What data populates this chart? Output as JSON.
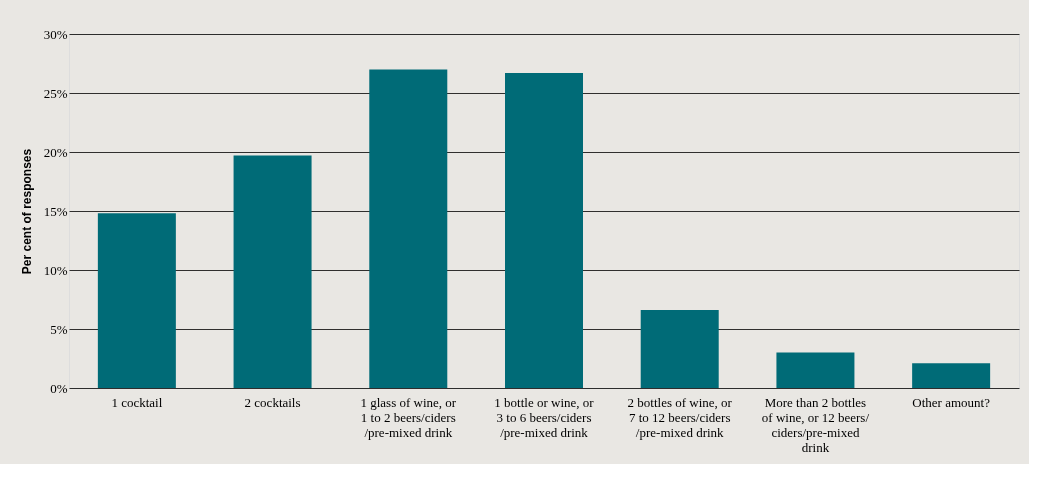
{
  "chart_data": {
    "type": "bar",
    "ylabel": "Per cent of responses",
    "categories": [
      "1 cocktail",
      "2 cocktails",
      "1 glass of wine, or\n1 to 2 beers/ciders\n/pre-mixed drink",
      "1 bottle or wine, or\n3 to 6 beers/ciders\n/pre-mixed drink",
      "2 bottles of wine, or\n7 to 12 beers/ciders\n/pre-mixed drink",
      "More than 2 bottles\nof wine, or 12 beers/\nciders/pre-mixed\ndrink",
      "Other amount?"
    ],
    "values": [
      14.8,
      19.7,
      27.0,
      26.7,
      6.6,
      3.0,
      2.1
    ],
    "color": "#006b77",
    "ylim": [
      0,
      30
    ],
    "yticks": [
      {
        "value": 0,
        "label": "0%"
      },
      {
        "value": 5,
        "label": "5%"
      },
      {
        "value": 10,
        "label": "10%"
      },
      {
        "value": 15,
        "label": "15%"
      },
      {
        "value": 20,
        "label": "20%"
      },
      {
        "value": 25,
        "label": "25%"
      },
      {
        "value": 30,
        "label": "30%"
      }
    ],
    "grid": "y"
  }
}
